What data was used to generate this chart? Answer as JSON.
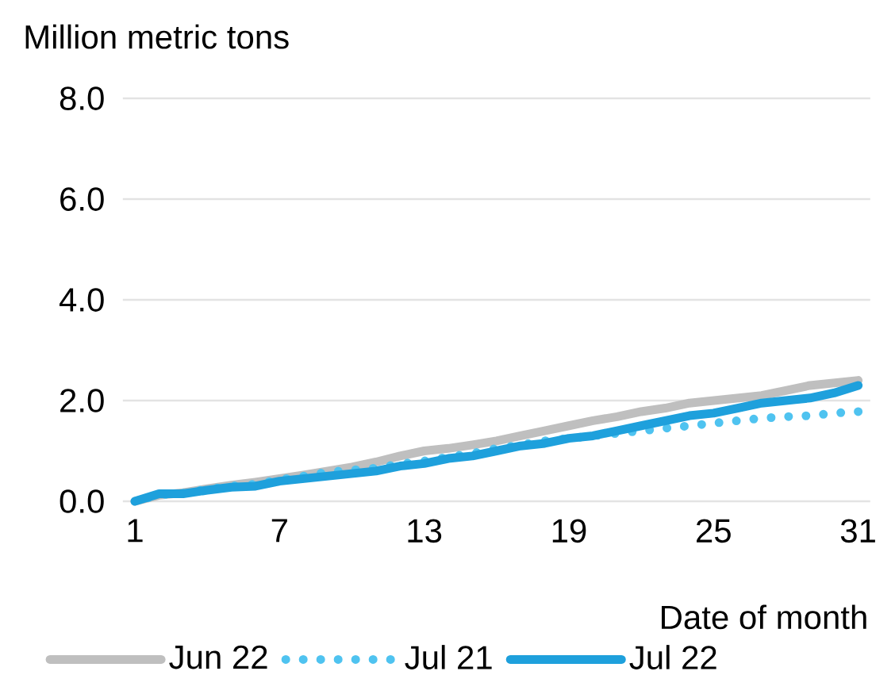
{
  "chart_data": {
    "type": "line",
    "ylabel": "Million metric tons",
    "xlabel": "Date of month",
    "x": [
      1,
      2,
      3,
      4,
      5,
      6,
      7,
      8,
      9,
      10,
      11,
      12,
      13,
      14,
      15,
      16,
      17,
      18,
      19,
      20,
      21,
      22,
      23,
      24,
      25,
      26,
      27,
      28,
      29,
      30,
      31
    ],
    "series": [
      {
        "name": "Jun 22",
        "color": "#bfbfbf",
        "line_style": "solid",
        "values": [
          0,
          0.12,
          0.17,
          0.25,
          0.32,
          0.38,
          0.45,
          0.52,
          0.6,
          0.68,
          0.78,
          0.9,
          1.0,
          1.05,
          1.12,
          1.2,
          1.3,
          1.4,
          1.5,
          1.6,
          1.68,
          1.78,
          1.85,
          1.95,
          2.0,
          2.05,
          2.1,
          2.2,
          2.3,
          2.35,
          2.4
        ]
      },
      {
        "name": "Jul 21",
        "color": "#4fc3f0",
        "line_style": "dotted",
        "values": [
          0,
          0.13,
          0.16,
          0.24,
          0.3,
          0.34,
          0.43,
          0.5,
          0.58,
          0.62,
          0.66,
          0.74,
          0.8,
          0.88,
          0.95,
          1.05,
          1.12,
          1.2,
          1.25,
          1.3,
          1.35,
          1.4,
          1.45,
          1.5,
          1.55,
          1.6,
          1.65,
          1.68,
          1.7,
          1.75,
          1.78
        ]
      },
      {
        "name": "Jul 22",
        "color": "#1ea0dc",
        "line_style": "solid",
        "values": [
          0,
          0.15,
          0.15,
          0.22,
          0.28,
          0.3,
          0.4,
          0.45,
          0.5,
          0.55,
          0.6,
          0.7,
          0.75,
          0.85,
          0.9,
          1.0,
          1.1,
          1.15,
          1.25,
          1.3,
          1.4,
          1.5,
          1.6,
          1.7,
          1.75,
          1.85,
          1.95,
          2.0,
          2.05,
          2.15,
          2.3
        ]
      }
    ],
    "xlim": [
      0.5,
      31.5
    ],
    "ylim": [
      0,
      8
    ],
    "xticks": [
      1,
      7,
      13,
      19,
      25,
      31
    ],
    "yticks": [
      {
        "value": 0,
        "label": "0.0"
      },
      {
        "value": 2,
        "label": "2.0"
      },
      {
        "value": 4,
        "label": "4.0"
      },
      {
        "value": 6,
        "label": "6.0"
      },
      {
        "value": 8,
        "label": "8.0"
      }
    ],
    "grid": "y",
    "legend": "bottom"
  }
}
